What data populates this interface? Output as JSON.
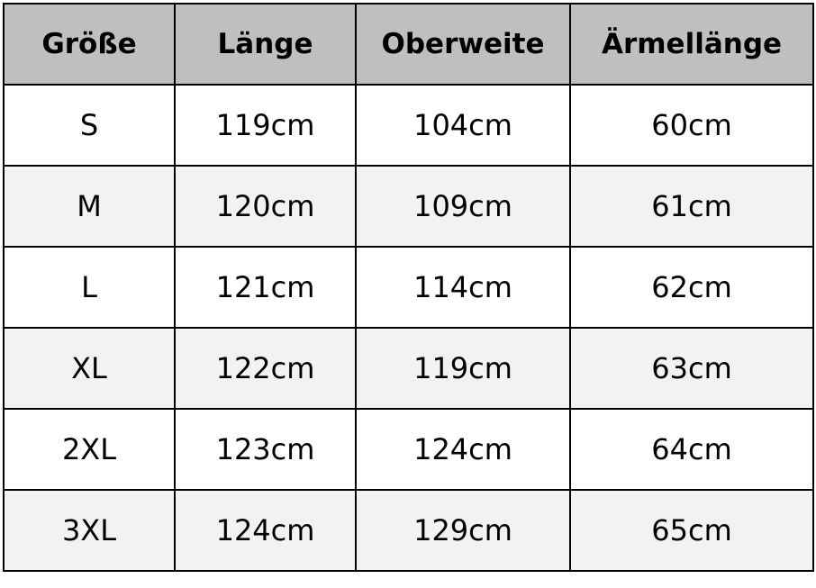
{
  "headers": [
    "Größe",
    "Länge",
    "Oberweite",
    "Ärmellänge"
  ],
  "rows": [
    [
      "S",
      "119cm",
      "104cm",
      "60cm"
    ],
    [
      "M",
      "120cm",
      "109cm",
      "61cm"
    ],
    [
      "L",
      "121cm",
      "114cm",
      "62cm"
    ],
    [
      "XL",
      "122cm",
      "119cm",
      "63cm"
    ],
    [
      "2XL",
      "123cm",
      "124cm",
      "64cm"
    ],
    [
      "3XL",
      "124cm",
      "129cm",
      "65cm"
    ]
  ],
  "colors": {
    "header_bg": "#bfbfbf",
    "alt_row_bg": "#f2f2f2",
    "border": "#000000"
  }
}
